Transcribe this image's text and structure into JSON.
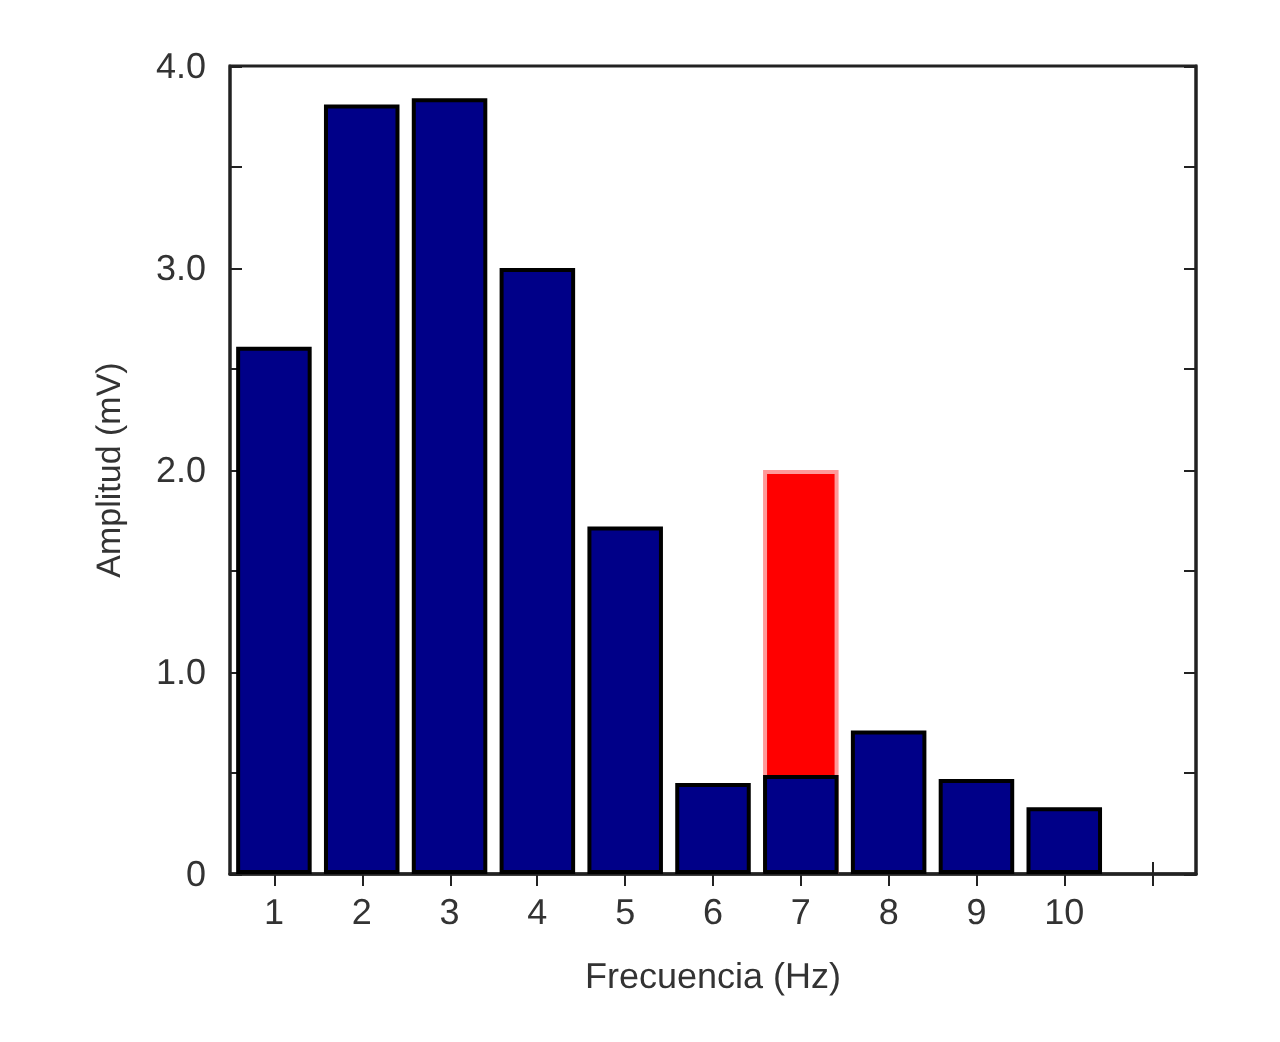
{
  "chart_data": {
    "type": "bar",
    "xlabel": "Frecuencia (Hz)",
    "ylabel": "Amplitud (mV)",
    "categories": [
      "1",
      "2",
      "3",
      "4",
      "5",
      "6",
      "7",
      "8",
      "9",
      "10",
      null
    ],
    "series": [
      {
        "color": "#ff0000",
        "values": [
          null,
          null,
          null,
          null,
          null,
          null,
          2.0,
          null,
          null,
          null,
          null
        ]
      },
      {
        "color": "#000088",
        "values": [
          2.61,
          3.81,
          3.84,
          3.0,
          1.72,
          0.45,
          0.49,
          0.71,
          0.47,
          0.33,
          null
        ]
      }
    ],
    "ylim": [
      0,
      4.0
    ],
    "yticks": [
      {
        "value": 0,
        "label": "0"
      },
      {
        "value": 0.5,
        "label": null
      },
      {
        "value": 1.0,
        "label": "1.0"
      },
      {
        "value": 1.5,
        "label": null
      },
      {
        "value": 2.0,
        "label": "2.0"
      },
      {
        "value": 2.5,
        "label": null
      },
      {
        "value": 3.0,
        "label": "3.0"
      },
      {
        "value": 3.5,
        "label": null
      },
      {
        "value": 4.0,
        "label": "4.0"
      }
    ],
    "orientation": "vertical"
  }
}
